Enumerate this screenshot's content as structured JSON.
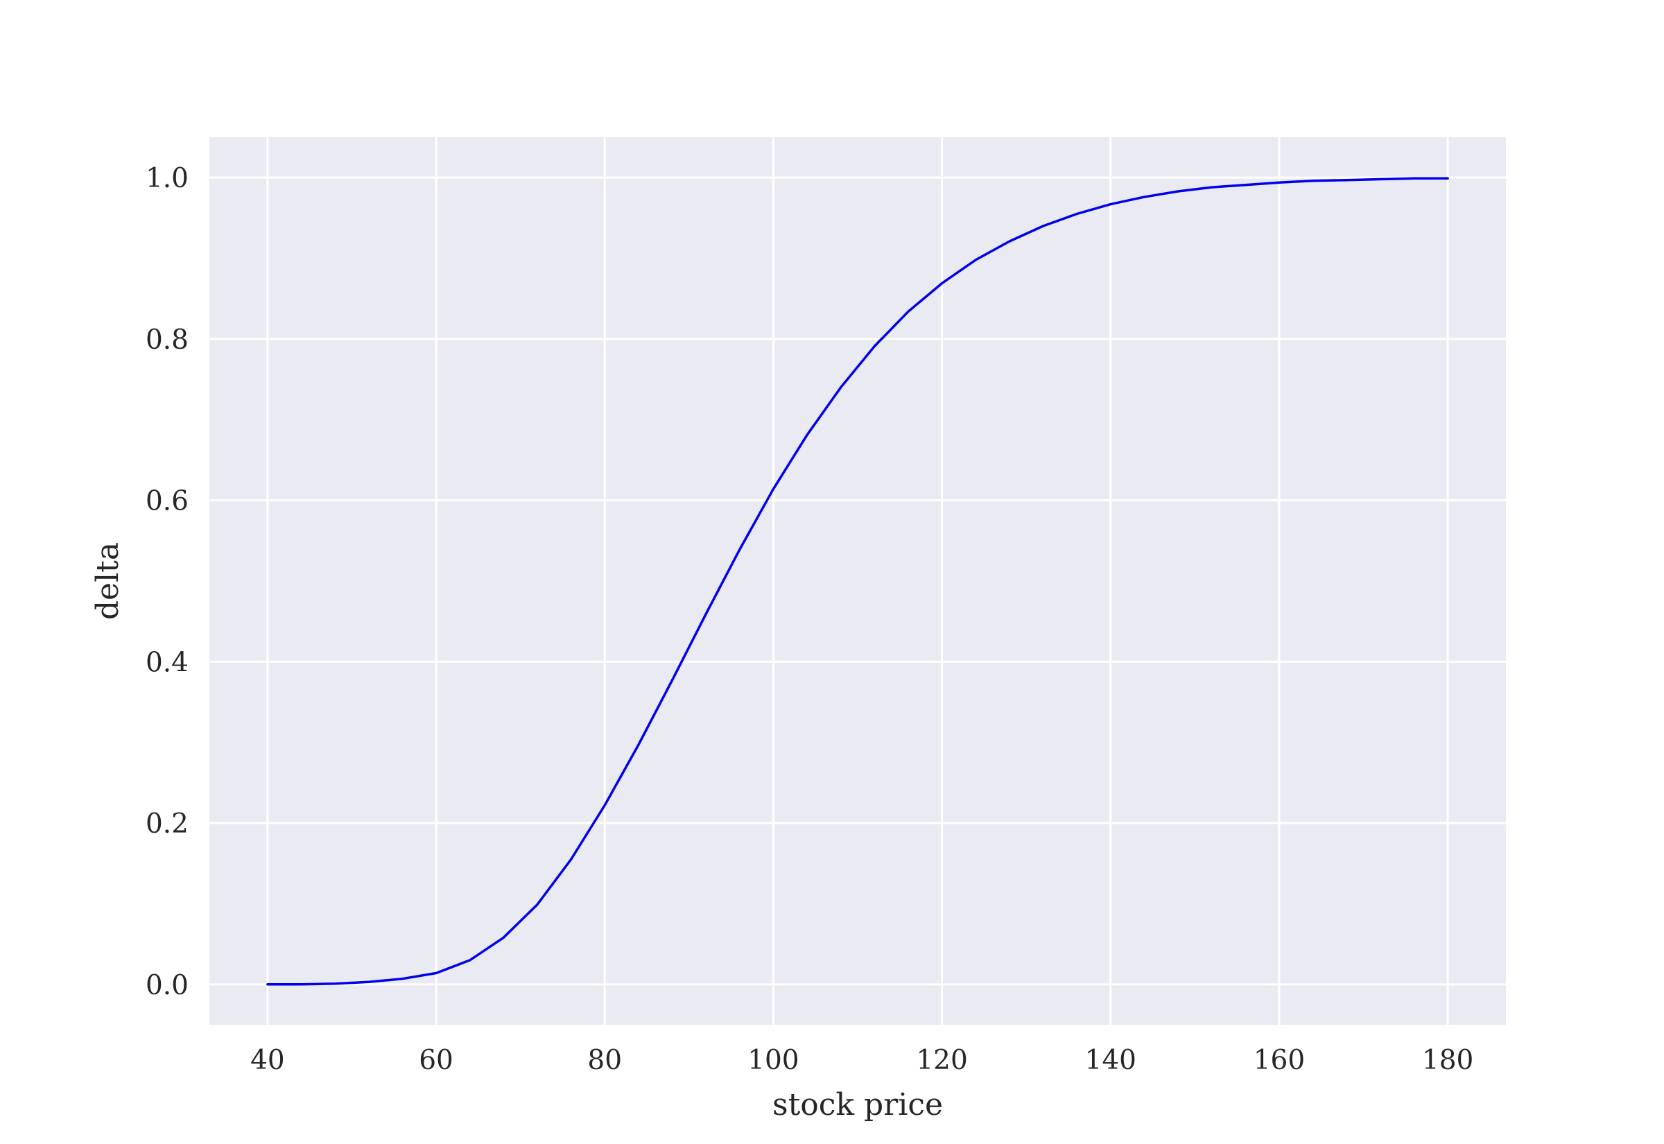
{
  "chart_data": {
    "type": "line",
    "title": "",
    "xlabel": "stock price",
    "ylabel": "delta",
    "xlim": [
      33.1,
      186.9
    ],
    "ylim": [
      -0.05,
      1.05
    ],
    "x_ticks": [
      40,
      60,
      80,
      100,
      120,
      140,
      160,
      180
    ],
    "y_ticks": [
      0.0,
      0.2,
      0.4,
      0.6,
      0.8,
      1.0
    ],
    "x_tick_labels": [
      "40",
      "60",
      "80",
      "100",
      "120",
      "140",
      "160",
      "180"
    ],
    "y_tick_labels": [
      "0.0",
      "0.2",
      "0.4",
      "0.6",
      "0.8",
      "1.0"
    ],
    "grid": true,
    "colors": {
      "background": "#eaeaf2",
      "grid": "#ffffff",
      "line": "#0000ee",
      "text": "#262626"
    },
    "series": [
      {
        "x": [
          40,
          44,
          48,
          52,
          56,
          60,
          64,
          68,
          72,
          76,
          80,
          84,
          88,
          92,
          96,
          100,
          104,
          108,
          112,
          116,
          120,
          124,
          128,
          132,
          136,
          140,
          144,
          148,
          152,
          156,
          160,
          164,
          168,
          172,
          176,
          180
        ],
        "y": [
          0.0,
          0.0,
          0.001,
          0.003,
          0.007,
          0.014,
          0.03,
          0.058,
          0.099,
          0.155,
          0.222,
          0.297,
          0.377,
          0.459,
          0.539,
          0.614,
          0.681,
          0.74,
          0.791,
          0.834,
          0.869,
          0.898,
          0.921,
          0.94,
          0.955,
          0.967,
          0.976,
          0.983,
          0.988,
          0.991,
          0.994,
          0.996,
          0.997,
          0.998,
          0.999,
          0.999
        ]
      }
    ]
  }
}
